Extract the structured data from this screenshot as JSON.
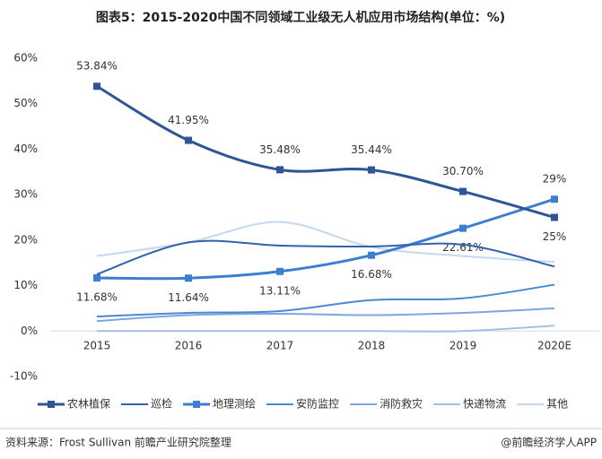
{
  "chart_data": {
    "type": "line",
    "title": "图表5：2015-2020中国不同领域工业级无人机应用市场结构(单位：%)",
    "categories": [
      "2015",
      "2016",
      "2017",
      "2018",
      "2019",
      "2020E"
    ],
    "ylim": [
      -10,
      60
    ],
    "yticks": [
      {
        "value": -10,
        "label": "-10%"
      },
      {
        "value": 0,
        "label": "0%"
      },
      {
        "value": 10,
        "label": "10%"
      },
      {
        "value": 20,
        "label": "20%"
      },
      {
        "value": 30,
        "label": "30%"
      },
      {
        "value": 40,
        "label": "40%"
      },
      {
        "value": 50,
        "label": "50%"
      },
      {
        "value": 60,
        "label": "60%"
      }
    ],
    "grid": false,
    "legend": "bottom",
    "series": [
      {
        "name": "农林植保",
        "color": "#2e5597",
        "marker": "square",
        "values": [
          53.84,
          41.95,
          35.48,
          35.44,
          30.7,
          25
        ],
        "value_labels": [
          "53.84%",
          "41.95%",
          "35.48%",
          "35.44%",
          "30.70%",
          "25%"
        ]
      },
      {
        "name": "巡检",
        "color": "#3062ad",
        "values": [
          12.5,
          19.5,
          18.8,
          18.6,
          19,
          14.2
        ]
      },
      {
        "name": "地理测绘",
        "color": "#3c7fd2",
        "marker": "square",
        "values": [
          11.68,
          11.64,
          13.11,
          16.68,
          22.61,
          29
        ],
        "value_labels": [
          "11.68%",
          "11.64%",
          "13.11%",
          "16.68%",
          "22.61%",
          "29%"
        ]
      },
      {
        "name": "安防监控",
        "color": "#4a88d6",
        "values": [
          3.2,
          4,
          4.4,
          6.8,
          7.2,
          10.2
        ]
      },
      {
        "name": "消防救灾",
        "color": "#7ea6de",
        "values": [
          2.2,
          3.5,
          3.8,
          3.5,
          4,
          5
        ]
      },
      {
        "name": "快递物流",
        "color": "#a3bfe9",
        "values": [
          0,
          0,
          0,
          0,
          0,
          1.2
        ]
      },
      {
        "name": "其他",
        "color": "#c6d7f0",
        "values": [
          16.5,
          19.5,
          24,
          18.5,
          16.5,
          15.2
        ]
      }
    ]
  },
  "source": "资料来源：Frost Sullivan 前瞻产业研究院整理",
  "credit": "@前瞻经济学人APP"
}
